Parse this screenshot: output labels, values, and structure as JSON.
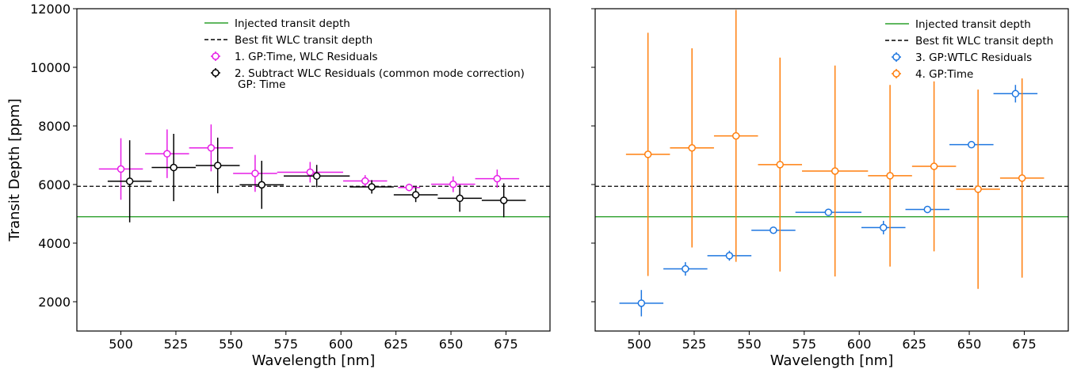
{
  "chart_data": [
    {
      "type": "scatter",
      "xlabel": "Wavelength [nm]",
      "ylabel": "Transit Depth [ppm]",
      "xlim": [
        480,
        695
      ],
      "ylim": [
        1000,
        12000
      ],
      "xticks": [
        500,
        525,
        550,
        575,
        600,
        625,
        650,
        675
      ],
      "yticks": [
        2000,
        4000,
        6000,
        8000,
        10000,
        12000
      ],
      "show_ytick_labels": true,
      "grid": false,
      "legend_position": "top-center",
      "reference_lines": [
        {
          "name": "Injected transit depth",
          "y": 4900,
          "color": "#2ca02c",
          "style": "solid"
        },
        {
          "name": "Best fit WLC transit depth",
          "y": 5940,
          "color": "#000000",
          "style": "dashed"
        }
      ],
      "series": [
        {
          "name": "1. GP:Time, WLC Residuals",
          "color": "#e61ee6",
          "points": [
            {
              "x": 500,
              "xerr": 10,
              "y": 6530,
              "yerr": 1050
            },
            {
              "x": 521,
              "xerr": 10,
              "y": 7050,
              "yerr": 830
            },
            {
              "x": 541,
              "xerr": 10,
              "y": 7250,
              "yerr": 800
            },
            {
              "x": 561,
              "xerr": 10,
              "y": 6380,
              "yerr": 630
            },
            {
              "x": 586,
              "xerr": 15,
              "y": 6420,
              "yerr": 350
            },
            {
              "x": 611,
              "xerr": 10,
              "y": 6120,
              "yerr": 200
            },
            {
              "x": 631,
              "xerr": 5,
              "y": 5900,
              "yerr": 130
            },
            {
              "x": 651,
              "xerr": 10,
              "y": 6010,
              "yerr": 270
            },
            {
              "x": 671,
              "xerr": 10,
              "y": 6200,
              "yerr": 310
            }
          ]
        },
        {
          "name": "2. Subtract WLC Residuals (common mode correction)",
          "name_line2": "GP: Time",
          "color": "#000000",
          "points": [
            {
              "x": 504,
              "xerr": 10,
              "y": 6110,
              "yerr": 1400
            },
            {
              "x": 524,
              "xerr": 10,
              "y": 6580,
              "yerr": 1150
            },
            {
              "x": 544,
              "xerr": 10,
              "y": 6650,
              "yerr": 950
            },
            {
              "x": 564,
              "xerr": 10,
              "y": 5990,
              "yerr": 820
            },
            {
              "x": 589,
              "xerr": 15,
              "y": 6290,
              "yerr": 380
            },
            {
              "x": 614,
              "xerr": 10,
              "y": 5920,
              "yerr": 230
            },
            {
              "x": 634,
              "xerr": 10,
              "y": 5650,
              "yerr": 250
            },
            {
              "x": 654,
              "xerr": 10,
              "y": 5530,
              "yerr": 460
            },
            {
              "x": 674,
              "xerr": 10,
              "y": 5460,
              "yerr": 580
            }
          ]
        }
      ]
    },
    {
      "type": "scatter",
      "xlabel": "Wavelength [nm]",
      "ylabel": "",
      "xlim": [
        480,
        695
      ],
      "ylim": [
        1000,
        12000
      ],
      "xticks": [
        500,
        525,
        550,
        575,
        600,
        625,
        650,
        675
      ],
      "yticks": [
        2000,
        4000,
        6000,
        8000,
        10000,
        12000
      ],
      "show_ytick_labels": false,
      "grid": false,
      "legend_position": "top-right",
      "reference_lines": [
        {
          "name": "Injected transit depth",
          "y": 4900,
          "color": "#2ca02c",
          "style": "solid"
        },
        {
          "name": "Best fit WLC transit depth",
          "y": 5940,
          "color": "#000000",
          "style": "dashed"
        }
      ],
      "series": [
        {
          "name": "3. GP:WTLC Residuals",
          "color": "#1f77e0",
          "points": [
            {
              "x": 501,
              "xerr": 10,
              "y": 1950,
              "yerr": 450
            },
            {
              "x": 521,
              "xerr": 10,
              "y": 3120,
              "yerr": 230
            },
            {
              "x": 541,
              "xerr": 10,
              "y": 3570,
              "yerr": 170
            },
            {
              "x": 561,
              "xerr": 10,
              "y": 4440,
              "yerr": 100
            },
            {
              "x": 586,
              "xerr": 15,
              "y": 5050,
              "yerr": 100
            },
            {
              "x": 611,
              "xerr": 10,
              "y": 4530,
              "yerr": 230
            },
            {
              "x": 631,
              "xerr": 10,
              "y": 5150,
              "yerr": 100
            },
            {
              "x": 651,
              "xerr": 10,
              "y": 7360,
              "yerr": 100
            },
            {
              "x": 671,
              "xerr": 10,
              "y": 9100,
              "yerr": 300
            }
          ]
        },
        {
          "name": "4. GP:Time",
          "color": "#ff7f0e",
          "points": [
            {
              "x": 504,
              "xerr": 10,
              "y": 7030,
              "yerr": 4150
            },
            {
              "x": 524,
              "xerr": 10,
              "y": 7250,
              "yerr": 3400
            },
            {
              "x": 544,
              "xerr": 10,
              "y": 7660,
              "yerr": 4300
            },
            {
              "x": 564,
              "xerr": 10,
              "y": 6680,
              "yerr": 3650
            },
            {
              "x": 589,
              "xerr": 15,
              "y": 6460,
              "yerr": 3600
            },
            {
              "x": 614,
              "xerr": 10,
              "y": 6300,
              "yerr": 3100
            },
            {
              "x": 634,
              "xerr": 10,
              "y": 6620,
              "yerr": 2900
            },
            {
              "x": 654,
              "xerr": 10,
              "y": 5840,
              "yerr": 3400
            },
            {
              "x": 674,
              "xerr": 10,
              "y": 6220,
              "yerr": 3400
            }
          ]
        }
      ]
    }
  ]
}
